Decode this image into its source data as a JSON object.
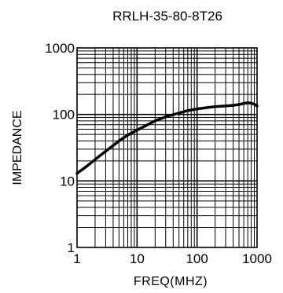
{
  "chart_data": {
    "type": "line",
    "title": "RRLH-35-80-8T26",
    "xlabel": "FREQ(MHZ)",
    "ylabel": "IMPEDANCE",
    "x_scale": "log",
    "y_scale": "log",
    "xlim": [
      1,
      1000
    ],
    "ylim": [
      1,
      1000
    ],
    "x_ticks": [
      "1",
      "10",
      "100",
      "1000"
    ],
    "y_ticks": [
      "1",
      "10",
      "100",
      "1000"
    ],
    "grid": true,
    "series": [
      {
        "x": [
          1,
          1.5,
          2,
          3,
          4,
          5,
          7,
          10,
          15,
          20,
          30,
          50,
          70,
          100,
          150,
          200,
          300,
          400,
          500,
          600,
          700,
          800,
          900,
          1000
        ],
        "y": [
          13,
          17,
          21,
          28,
          34,
          40,
          49,
          58,
          70,
          80,
          92,
          105,
          114,
          121,
          127,
          131,
          134,
          137,
          141,
          146,
          150,
          147,
          143,
          134
        ],
        "color": "#000000"
      }
    ]
  }
}
